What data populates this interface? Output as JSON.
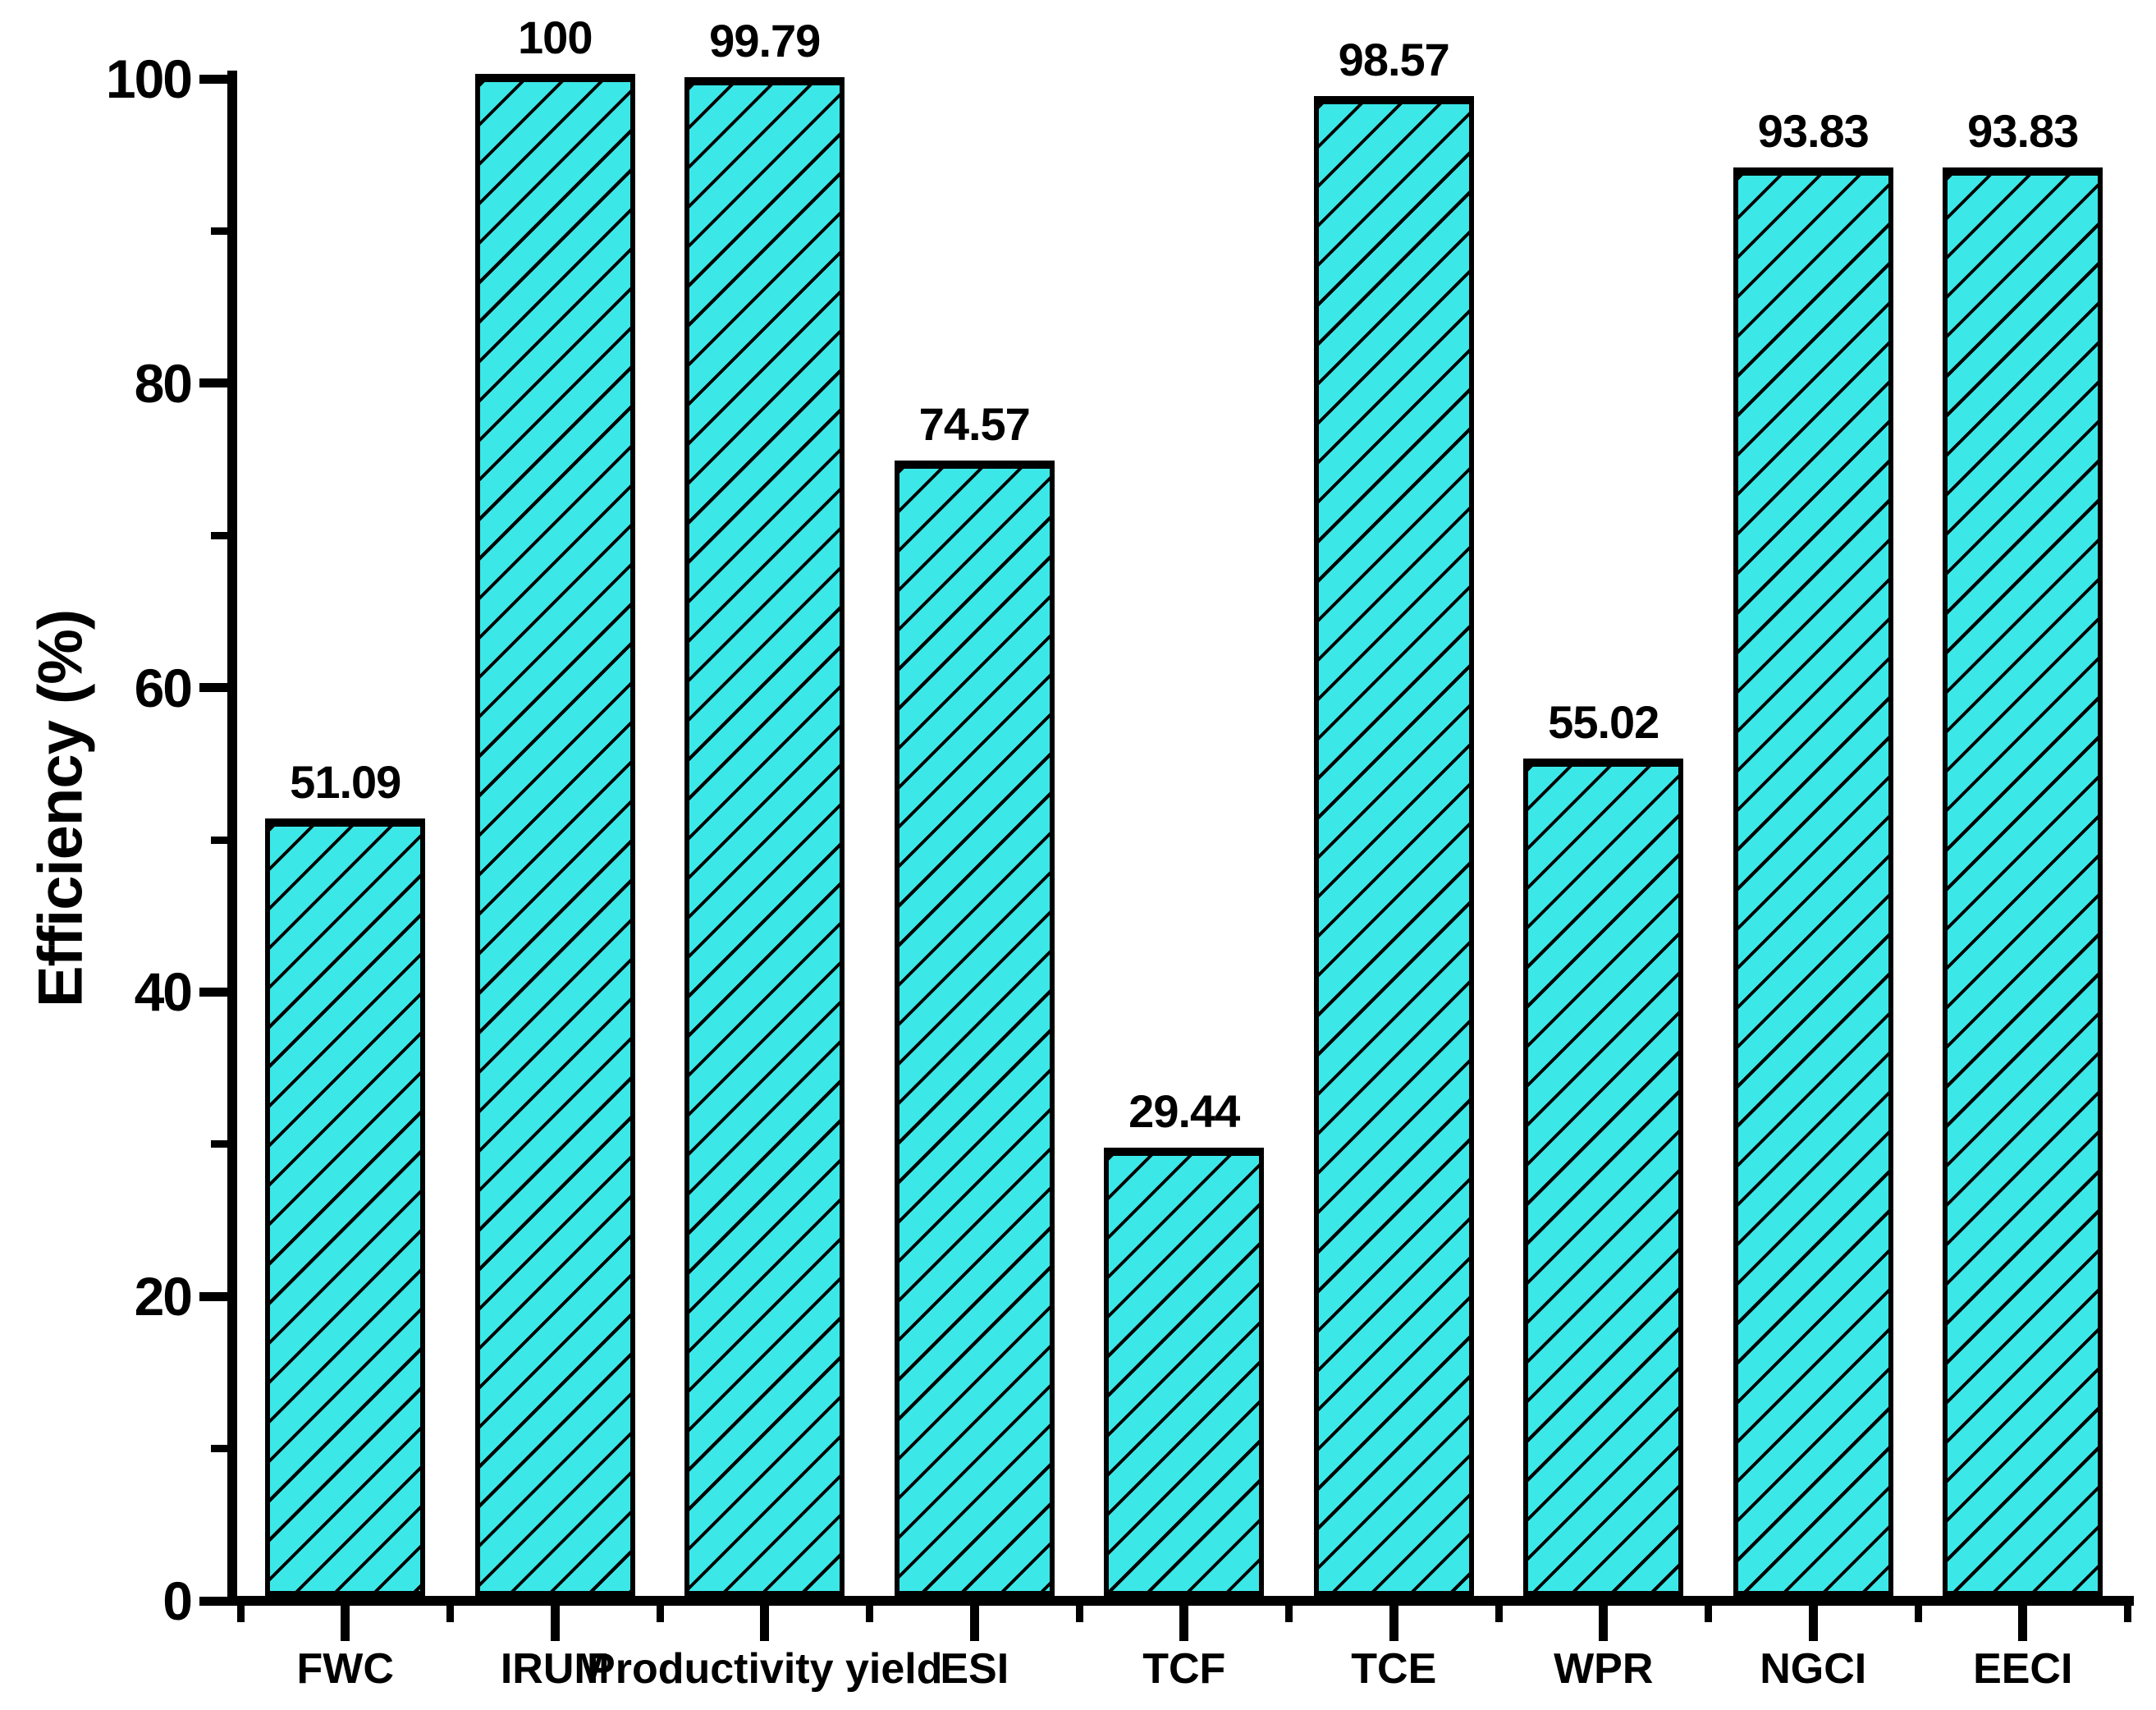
{
  "chart_data": {
    "type": "bar",
    "title": "",
    "xlabel": "",
    "ylabel": "Efficiency (%)",
    "categories": [
      "FWC",
      "IRUM",
      "Productivity yield",
      "ESI",
      "TCF",
      "TCE",
      "WPR",
      "NGCI",
      "EECI"
    ],
    "values": [
      51.09,
      100,
      99.79,
      74.57,
      29.44,
      98.57,
      55.02,
      93.83,
      93.83
    ],
    "value_labels": [
      "51.09",
      "100",
      "99.79",
      "74.57",
      "29.44",
      "98.57",
      "55.02",
      "93.83",
      "93.83"
    ],
    "ylim": [
      0,
      100
    ],
    "yticks_major": [
      0,
      20,
      40,
      60,
      80,
      100
    ],
    "yticks_minor": [
      10,
      30,
      50,
      70,
      90
    ],
    "bar_fill_color": "#3CE7E7",
    "hatch_color": "#000000",
    "hatch_style": "diagonal-forward",
    "axis_color": "#000000",
    "grid": false,
    "legend": null
  }
}
